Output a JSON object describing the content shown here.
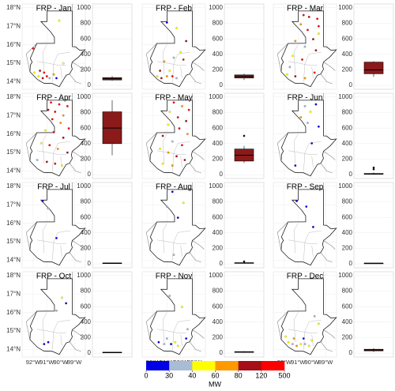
{
  "chart_data": {
    "type": "map-boxplot",
    "map_xlim": [
      -92.8,
      -88.2
    ],
    "map_ylim": [
      13.6,
      18.2
    ],
    "lat_ticks": [
      {
        "value": 14,
        "label": "14°N"
      },
      {
        "value": 15,
        "label": "15°N"
      },
      {
        "value": 16,
        "label": "16°N"
      },
      {
        "value": 17,
        "label": "17°N"
      },
      {
        "value": 18,
        "label": "18°N"
      }
    ],
    "lon_ticks": [
      {
        "value": -92,
        "label": "92°W"
      },
      {
        "value": -91,
        "label": "91°W"
      },
      {
        "value": -90,
        "label": "90°W"
      },
      {
        "value": -89,
        "label": "89°W"
      }
    ],
    "box_ylim": [
      -50,
      1050
    ],
    "box_yticks": [
      0,
      200,
      400,
      600,
      800,
      1000
    ],
    "box_color": "#8b1a1a",
    "colorbar": {
      "label": "MW",
      "bounds": [
        0,
        30,
        40,
        60,
        80,
        120,
        500
      ],
      "colors": [
        "#0000e6",
        "#a9bcd6",
        "#ffff00",
        "#ff9900",
        "#a50f15",
        "#ff0000"
      ]
    },
    "panels": [
      {
        "title": "FRP - Jan",
        "box": {
          "min": 60,
          "q1": 70,
          "median": 85,
          "q3": 100,
          "max": 120,
          "outliers": []
        },
        "fires": [
          [
            -91.6,
            14.3,
            45
          ],
          [
            -91.3,
            14.2,
            85
          ],
          [
            -91.0,
            14.3,
            130
          ],
          [
            -90.8,
            14.2,
            35
          ],
          [
            -90.5,
            14.4,
            70
          ],
          [
            -91.9,
            14.5,
            55
          ],
          [
            -91.2,
            14.5,
            200
          ],
          [
            -90.3,
            14.2,
            25
          ],
          [
            -91.5,
            14.6,
            90
          ],
          [
            -90.1,
            17.3,
            40
          ],
          [
            -92.0,
            15.8,
            150
          ],
          [
            -89.8,
            15.0,
            50
          ]
        ]
      },
      {
        "title": "FRP - Feb",
        "box": {
          "min": 70,
          "q1": 95,
          "median": 115,
          "q3": 135,
          "max": 150,
          "outliers": []
        },
        "fires": [
          [
            -91.7,
            14.3,
            40
          ],
          [
            -91.4,
            14.2,
            100
          ],
          [
            -91.0,
            14.3,
            60
          ],
          [
            -90.6,
            14.3,
            130
          ],
          [
            -90.3,
            14.2,
            30
          ],
          [
            -91.5,
            14.6,
            85
          ],
          [
            -90.8,
            14.6,
            45
          ],
          [
            -91.2,
            15.1,
            70
          ],
          [
            -90.5,
            15.3,
            35
          ],
          [
            -90.0,
            15.6,
            50
          ],
          [
            -89.6,
            16.2,
            90
          ],
          [
            -90.3,
            16.9,
            45
          ],
          [
            -91.0,
            17.2,
            25
          ],
          [
            -89.8,
            15.2,
            150
          ]
        ]
      },
      {
        "title": "FRP - Mar",
        "box": {
          "min": 110,
          "q1": 150,
          "median": 200,
          "q3": 300,
          "max": 310,
          "outliers": []
        },
        "fires": [
          [
            -90.6,
            17.6,
            200
          ],
          [
            -90.2,
            17.5,
            90
          ],
          [
            -89.6,
            17.4,
            150
          ],
          [
            -90.8,
            17.1,
            60
          ],
          [
            -90.3,
            16.8,
            300
          ],
          [
            -89.5,
            16.6,
            45
          ],
          [
            -89.9,
            16.3,
            110
          ],
          [
            -91.2,
            16.2,
            70
          ],
          [
            -90.5,
            15.9,
            35
          ],
          [
            -89.7,
            15.7,
            85
          ],
          [
            -91.4,
            15.4,
            55
          ],
          [
            -90.7,
            15.2,
            130
          ],
          [
            -91.8,
            14.4,
            40
          ],
          [
            -91.2,
            14.3,
            95
          ],
          [
            -90.5,
            14.2,
            65
          ],
          [
            -89.8,
            14.5,
            140
          ],
          [
            -91.6,
            14.8,
            30
          ],
          [
            -89.5,
            17.0,
            250
          ]
        ]
      },
      {
        "title": "FRP - Apr",
        "box": {
          "min": 250,
          "q1": 400,
          "median": 600,
          "q3": 810,
          "max": 960,
          "outliers": []
        },
        "fires": [
          [
            -90.7,
            17.7,
            300
          ],
          [
            -90.1,
            17.6,
            120
          ],
          [
            -89.5,
            17.5,
            450
          ],
          [
            -90.9,
            17.3,
            95
          ],
          [
            -90.4,
            17.2,
            200
          ],
          [
            -89.8,
            17.0,
            60
          ],
          [
            -90.6,
            16.8,
            150
          ],
          [
            -90.0,
            16.6,
            75
          ],
          [
            -89.4,
            16.3,
            260
          ],
          [
            -91.1,
            16.2,
            45
          ],
          [
            -90.5,
            16.1,
            130
          ],
          [
            -89.8,
            15.8,
            90
          ],
          [
            -91.4,
            15.5,
            40
          ],
          [
            -90.8,
            15.4,
            180
          ],
          [
            -90.2,
            15.2,
            65
          ],
          [
            -89.5,
            15.0,
            110
          ],
          [
            -91.7,
            14.6,
            35
          ],
          [
            -91.0,
            14.5,
            85
          ],
          [
            -90.4,
            14.4,
            140
          ],
          [
            -89.9,
            14.3,
            55
          ]
        ]
      },
      {
        "title": "FRP - May",
        "box": {
          "min": 150,
          "q1": 175,
          "median": 250,
          "q3": 330,
          "max": 370,
          "outliers": [
            500
          ]
        },
        "fires": [
          [
            -90.5,
            17.7,
            150
          ],
          [
            -89.9,
            17.5,
            70
          ],
          [
            -89.4,
            17.3,
            220
          ],
          [
            -90.8,
            17.2,
            50
          ],
          [
            -90.2,
            16.9,
            120
          ],
          [
            -89.6,
            16.7,
            85
          ],
          [
            -90.9,
            16.5,
            40
          ],
          [
            -90.1,
            16.3,
            180
          ],
          [
            -89.5,
            16.0,
            65
          ],
          [
            -91.3,
            15.9,
            95
          ],
          [
            -90.6,
            15.6,
            35
          ],
          [
            -89.9,
            15.4,
            140
          ],
          [
            -91.5,
            15.2,
            55
          ],
          [
            -90.9,
            15.0,
            75
          ],
          [
            -90.3,
            14.8,
            110
          ],
          [
            -91.3,
            14.4,
            45
          ],
          [
            -90.6,
            14.3,
            60
          ],
          [
            -89.7,
            14.6,
            90
          ]
        ]
      },
      {
        "title": "FRP - Jun",
        "box": {
          "min": 0,
          "q1": 5,
          "median": 10,
          "q3": 15,
          "max": 25,
          "outliers": [
            70,
            90
          ]
        },
        "fires": [
          [
            -90.5,
            17.5,
            30
          ],
          [
            -90.1,
            17.2,
            45
          ],
          [
            -89.7,
            17.6,
            20
          ],
          [
            -90.8,
            16.9,
            70
          ],
          [
            -89.5,
            16.4,
            25
          ],
          [
            -90.3,
            16.6,
            35
          ],
          [
            -91.2,
            14.3,
            15
          ],
          [
            -90.0,
            15.5,
            20
          ]
        ]
      },
      {
        "title": "FRP - Jul",
        "box": {
          "min": 5,
          "q1": 8,
          "median": 10,
          "q3": 12,
          "max": 15,
          "outliers": []
        },
        "fires": [
          [
            -91.3,
            17.2,
            20
          ],
          [
            -90.9,
            16.8,
            35
          ],
          [
            -90.3,
            15.2,
            15
          ]
        ]
      },
      {
        "title": "FRP - Aug",
        "box": {
          "min": 5,
          "q1": 8,
          "median": 12,
          "q3": 15,
          "max": 20,
          "outliers": [
            30
          ]
        },
        "fires": [
          [
            -90.6,
            17.7,
            25
          ],
          [
            -89.8,
            17.1,
            45
          ],
          [
            -91.0,
            16.9,
            30
          ],
          [
            -90.2,
            16.3,
            20
          ],
          [
            -90.5,
            14.3,
            35
          ]
        ]
      },
      {
        "title": "FRP - Sep",
        "box": {
          "min": 4,
          "q1": 6,
          "median": 8,
          "q3": 10,
          "max": 12,
          "outliers": []
        },
        "fires": [
          [
            -91.1,
            17.2,
            25
          ],
          [
            -90.4,
            16.9,
            20
          ],
          [
            -89.9,
            15.8,
            15
          ]
        ]
      },
      {
        "title": "FRP - Oct",
        "box": {
          "min": 5,
          "q1": 8,
          "median": 10,
          "q3": 12,
          "max": 15,
          "outliers": []
        },
        "fires": [
          [
            -89.9,
            16.8,
            40
          ],
          [
            -89.6,
            16.5,
            25
          ],
          [
            -90.3,
            16.1,
            30
          ],
          [
            -91.2,
            14.3,
            20
          ],
          [
            -90.9,
            14.4,
            15
          ]
        ]
      },
      {
        "title": "FRP - Nov",
        "box": {
          "min": 5,
          "q1": 10,
          "median": 15,
          "q3": 20,
          "max": 25,
          "outliers": []
        },
        "fires": [
          [
            -90.8,
            16.9,
            30
          ],
          [
            -89.9,
            16.3,
            45
          ],
          [
            -91.6,
            14.4,
            25
          ],
          [
            -91.2,
            14.3,
            35
          ],
          [
            -90.7,
            14.3,
            20
          ],
          [
            -90.4,
            14.4,
            50
          ],
          [
            -91.0,
            14.6,
            30
          ],
          [
            -90.2,
            14.2,
            40
          ],
          [
            -89.6,
            14.6,
            25
          ],
          [
            -89.5,
            15.1,
            35
          ]
        ]
      },
      {
        "title": "FRP - Dec",
        "box": {
          "min": 15,
          "q1": 30,
          "median": 40,
          "q3": 50,
          "max": 65,
          "outliers": []
        },
        "fires": [
          [
            -91.7,
            14.4,
            45
          ],
          [
            -91.4,
            14.3,
            30
          ],
          [
            -91.1,
            14.2,
            60
          ],
          [
            -90.8,
            14.3,
            40
          ],
          [
            -90.5,
            14.3,
            35
          ],
          [
            -90.2,
            14.2,
            50
          ],
          [
            -91.3,
            14.6,
            70
          ],
          [
            -90.6,
            14.6,
            25
          ],
          [
            -90.0,
            14.5,
            45
          ],
          [
            -89.8,
            15.8,
            30
          ],
          [
            -89.5,
            15.4,
            40
          ],
          [
            -91.9,
            14.7,
            55
          ]
        ]
      }
    ]
  }
}
